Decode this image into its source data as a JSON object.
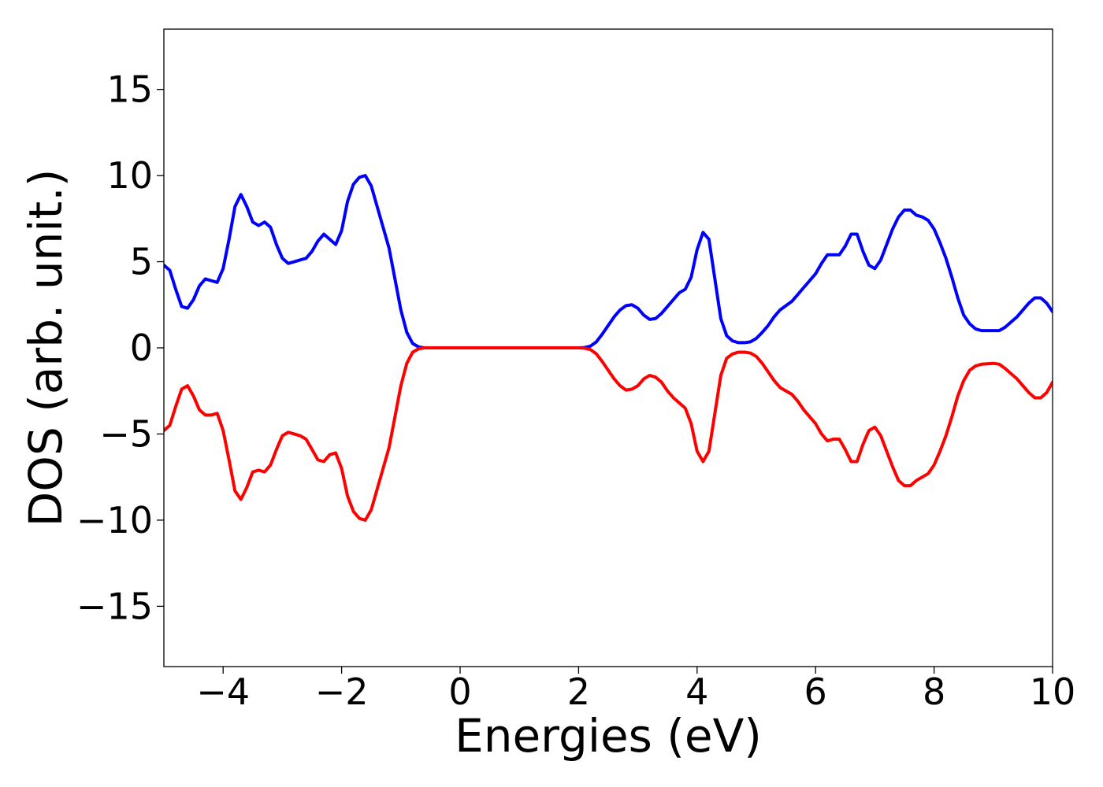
{
  "chart_data": {
    "type": "line",
    "title": "",
    "xlabel": "Energies (eV)",
    "ylabel": "DOS (arb. unit.)",
    "xlim": [
      -5,
      10
    ],
    "ylim": [
      -18.5,
      18.5
    ],
    "grid": false,
    "x_ticks": [
      -4,
      -2,
      0,
      2,
      4,
      6,
      8,
      10
    ],
    "x_tick_labels": [
      "−4",
      "−2",
      "0",
      "2",
      "4",
      "6",
      "8",
      "10"
    ],
    "y_ticks": [
      -15,
      -10,
      -5,
      0,
      5,
      10,
      15
    ],
    "y_tick_labels": [
      "−15",
      "−10",
      "−5",
      "0",
      "5",
      "10",
      "15"
    ],
    "series": [
      {
        "color": "#0000ff",
        "points": [
          [
            -5.0,
            4.8
          ],
          [
            -4.9,
            4.5
          ],
          [
            -4.8,
            3.4
          ],
          [
            -4.7,
            2.4
          ],
          [
            -4.6,
            2.3
          ],
          [
            -4.5,
            2.8
          ],
          [
            -4.4,
            3.6
          ],
          [
            -4.3,
            4.0
          ],
          [
            -4.2,
            3.9
          ],
          [
            -4.1,
            3.8
          ],
          [
            -4.0,
            4.6
          ],
          [
            -3.9,
            6.3
          ],
          [
            -3.8,
            8.2
          ],
          [
            -3.7,
            8.9
          ],
          [
            -3.6,
            8.2
          ],
          [
            -3.5,
            7.3
          ],
          [
            -3.4,
            7.1
          ],
          [
            -3.3,
            7.3
          ],
          [
            -3.2,
            7.0
          ],
          [
            -3.1,
            6.0
          ],
          [
            -3.0,
            5.2
          ],
          [
            -2.9,
            4.9
          ],
          [
            -2.8,
            5.0
          ],
          [
            -2.7,
            5.1
          ],
          [
            -2.6,
            5.2
          ],
          [
            -2.5,
            5.6
          ],
          [
            -2.4,
            6.2
          ],
          [
            -2.3,
            6.6
          ],
          [
            -2.2,
            6.3
          ],
          [
            -2.1,
            6.0
          ],
          [
            -2.0,
            6.8
          ],
          [
            -1.9,
            8.5
          ],
          [
            -1.8,
            9.5
          ],
          [
            -1.7,
            9.9
          ],
          [
            -1.6,
            10.0
          ],
          [
            -1.5,
            9.4
          ],
          [
            -1.4,
            8.2
          ],
          [
            -1.3,
            7.0
          ],
          [
            -1.2,
            5.8
          ],
          [
            -1.1,
            4.0
          ],
          [
            -1.0,
            2.2
          ],
          [
            -0.9,
            0.9
          ],
          [
            -0.8,
            0.25
          ],
          [
            -0.7,
            0.05
          ],
          [
            -0.6,
            0.0
          ],
          [
            -0.5,
            0.0
          ],
          [
            2.0,
            0.0
          ],
          [
            2.1,
            0.02
          ],
          [
            2.2,
            0.1
          ],
          [
            2.3,
            0.35
          ],
          [
            2.4,
            0.8
          ],
          [
            2.5,
            1.3
          ],
          [
            2.6,
            1.8
          ],
          [
            2.7,
            2.2
          ],
          [
            2.8,
            2.45
          ],
          [
            2.9,
            2.5
          ],
          [
            3.0,
            2.3
          ],
          [
            3.1,
            1.9
          ],
          [
            3.2,
            1.65
          ],
          [
            3.3,
            1.7
          ],
          [
            3.4,
            2.0
          ],
          [
            3.5,
            2.4
          ],
          [
            3.6,
            2.8
          ],
          [
            3.7,
            3.2
          ],
          [
            3.8,
            3.4
          ],
          [
            3.9,
            4.1
          ],
          [
            4.0,
            5.7
          ],
          [
            4.1,
            6.7
          ],
          [
            4.2,
            6.3
          ],
          [
            4.3,
            4.0
          ],
          [
            4.4,
            1.7
          ],
          [
            4.5,
            0.7
          ],
          [
            4.6,
            0.4
          ],
          [
            4.7,
            0.3
          ],
          [
            4.8,
            0.3
          ],
          [
            4.9,
            0.35
          ],
          [
            5.0,
            0.55
          ],
          [
            5.1,
            0.9
          ],
          [
            5.2,
            1.3
          ],
          [
            5.3,
            1.8
          ],
          [
            5.4,
            2.2
          ],
          [
            5.5,
            2.45
          ],
          [
            5.6,
            2.7
          ],
          [
            5.7,
            3.1
          ],
          [
            5.8,
            3.5
          ],
          [
            5.9,
            3.9
          ],
          [
            6.0,
            4.3
          ],
          [
            6.1,
            4.9
          ],
          [
            6.2,
            5.4
          ],
          [
            6.3,
            5.4
          ],
          [
            6.4,
            5.4
          ],
          [
            6.5,
            5.9
          ],
          [
            6.6,
            6.6
          ],
          [
            6.7,
            6.6
          ],
          [
            6.8,
            5.6
          ],
          [
            6.9,
            4.8
          ],
          [
            7.0,
            4.6
          ],
          [
            7.1,
            5.1
          ],
          [
            7.2,
            6.0
          ],
          [
            7.3,
            6.9
          ],
          [
            7.4,
            7.6
          ],
          [
            7.5,
            8.0
          ],
          [
            7.6,
            8.0
          ],
          [
            7.7,
            7.7
          ],
          [
            7.8,
            7.6
          ],
          [
            7.9,
            7.4
          ],
          [
            8.0,
            6.9
          ],
          [
            8.1,
            6.1
          ],
          [
            8.2,
            5.2
          ],
          [
            8.3,
            4.1
          ],
          [
            8.4,
            2.9
          ],
          [
            8.5,
            1.9
          ],
          [
            8.6,
            1.4
          ],
          [
            8.7,
            1.1
          ],
          [
            8.8,
            1.0
          ],
          [
            9.0,
            1.0
          ],
          [
            9.1,
            1.0
          ],
          [
            9.2,
            1.2
          ],
          [
            9.3,
            1.5
          ],
          [
            9.4,
            1.8
          ],
          [
            9.5,
            2.2
          ],
          [
            9.6,
            2.6
          ],
          [
            9.7,
            2.9
          ],
          [
            9.8,
            2.9
          ],
          [
            9.9,
            2.6
          ],
          [
            10.0,
            2.1
          ]
        ]
      },
      {
        "color": "#ff0000",
        "points": [
          [
            -5.0,
            -4.8
          ],
          [
            -4.9,
            -4.5
          ],
          [
            -4.8,
            -3.4
          ],
          [
            -4.7,
            -2.4
          ],
          [
            -4.6,
            -2.2
          ],
          [
            -4.5,
            -2.8
          ],
          [
            -4.4,
            -3.6
          ],
          [
            -4.3,
            -3.9
          ],
          [
            -4.2,
            -3.9
          ],
          [
            -4.1,
            -3.8
          ],
          [
            -4.0,
            -4.8
          ],
          [
            -3.9,
            -6.5
          ],
          [
            -3.8,
            -8.3
          ],
          [
            -3.7,
            -8.8
          ],
          [
            -3.6,
            -8.1
          ],
          [
            -3.5,
            -7.2
          ],
          [
            -3.4,
            -7.1
          ],
          [
            -3.3,
            -7.2
          ],
          [
            -3.2,
            -6.8
          ],
          [
            -3.1,
            -5.9
          ],
          [
            -3.0,
            -5.1
          ],
          [
            -2.9,
            -4.9
          ],
          [
            -2.8,
            -5.0
          ],
          [
            -2.7,
            -5.1
          ],
          [
            -2.6,
            -5.3
          ],
          [
            -2.5,
            -5.9
          ],
          [
            -2.4,
            -6.5
          ],
          [
            -2.3,
            -6.6
          ],
          [
            -2.2,
            -6.2
          ],
          [
            -2.1,
            -6.1
          ],
          [
            -2.0,
            -7.0
          ],
          [
            -1.9,
            -8.6
          ],
          [
            -1.8,
            -9.5
          ],
          [
            -1.7,
            -9.9
          ],
          [
            -1.6,
            -10.0
          ],
          [
            -1.5,
            -9.4
          ],
          [
            -1.4,
            -8.2
          ],
          [
            -1.3,
            -7.0
          ],
          [
            -1.2,
            -5.8
          ],
          [
            -1.1,
            -4.0
          ],
          [
            -1.0,
            -2.2
          ],
          [
            -0.9,
            -0.9
          ],
          [
            -0.8,
            -0.25
          ],
          [
            -0.7,
            -0.05
          ],
          [
            -0.6,
            0.0
          ],
          [
            -0.5,
            0.0
          ],
          [
            2.0,
            0.0
          ],
          [
            2.1,
            -0.02
          ],
          [
            2.2,
            -0.1
          ],
          [
            2.3,
            -0.35
          ],
          [
            2.4,
            -0.8
          ],
          [
            2.5,
            -1.3
          ],
          [
            2.6,
            -1.8
          ],
          [
            2.7,
            -2.2
          ],
          [
            2.8,
            -2.45
          ],
          [
            2.9,
            -2.4
          ],
          [
            3.0,
            -2.2
          ],
          [
            3.1,
            -1.8
          ],
          [
            3.2,
            -1.6
          ],
          [
            3.3,
            -1.7
          ],
          [
            3.4,
            -2.0
          ],
          [
            3.5,
            -2.5
          ],
          [
            3.6,
            -2.9
          ],
          [
            3.7,
            -3.2
          ],
          [
            3.8,
            -3.5
          ],
          [
            3.9,
            -4.4
          ],
          [
            4.0,
            -6.0
          ],
          [
            4.1,
            -6.6
          ],
          [
            4.2,
            -6.0
          ],
          [
            4.3,
            -3.8
          ],
          [
            4.4,
            -1.6
          ],
          [
            4.5,
            -0.6
          ],
          [
            4.6,
            -0.35
          ],
          [
            4.7,
            -0.25
          ],
          [
            4.8,
            -0.25
          ],
          [
            4.9,
            -0.3
          ],
          [
            5.0,
            -0.5
          ],
          [
            5.1,
            -0.9
          ],
          [
            5.2,
            -1.4
          ],
          [
            5.3,
            -1.9
          ],
          [
            5.4,
            -2.3
          ],
          [
            5.5,
            -2.5
          ],
          [
            5.6,
            -2.7
          ],
          [
            5.7,
            -3.1
          ],
          [
            5.8,
            -3.6
          ],
          [
            5.9,
            -4.0
          ],
          [
            6.0,
            -4.4
          ],
          [
            6.1,
            -5.0
          ],
          [
            6.2,
            -5.4
          ],
          [
            6.3,
            -5.3
          ],
          [
            6.4,
            -5.3
          ],
          [
            6.5,
            -5.9
          ],
          [
            6.6,
            -6.6
          ],
          [
            6.7,
            -6.6
          ],
          [
            6.8,
            -5.6
          ],
          [
            6.9,
            -4.8
          ],
          [
            7.0,
            -4.6
          ],
          [
            7.1,
            -5.1
          ],
          [
            7.2,
            -6.0
          ],
          [
            7.3,
            -6.9
          ],
          [
            7.4,
            -7.7
          ],
          [
            7.5,
            -8.0
          ],
          [
            7.6,
            -8.0
          ],
          [
            7.7,
            -7.7
          ],
          [
            7.8,
            -7.5
          ],
          [
            7.9,
            -7.3
          ],
          [
            8.0,
            -6.8
          ],
          [
            8.1,
            -6.0
          ],
          [
            8.2,
            -5.1
          ],
          [
            8.3,
            -4.0
          ],
          [
            8.4,
            -2.8
          ],
          [
            8.5,
            -1.9
          ],
          [
            8.6,
            -1.3
          ],
          [
            8.7,
            -1.05
          ],
          [
            8.8,
            -0.95
          ],
          [
            9.0,
            -0.9
          ],
          [
            9.1,
            -0.95
          ],
          [
            9.2,
            -1.2
          ],
          [
            9.3,
            -1.5
          ],
          [
            9.4,
            -1.8
          ],
          [
            9.5,
            -2.2
          ],
          [
            9.6,
            -2.6
          ],
          [
            9.7,
            -2.9
          ],
          [
            9.8,
            -2.9
          ],
          [
            9.9,
            -2.6
          ],
          [
            10.0,
            -2.0
          ]
        ]
      }
    ]
  }
}
